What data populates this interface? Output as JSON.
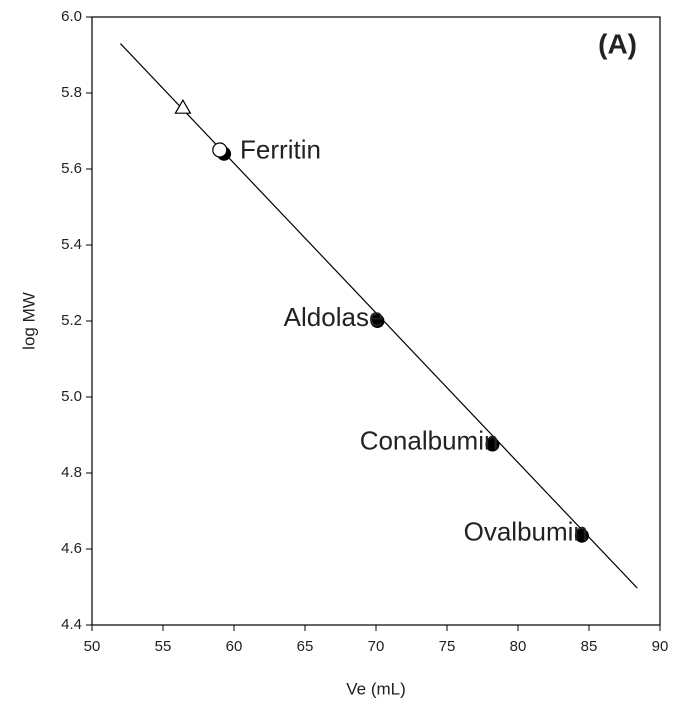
{
  "chart_data": {
    "type": "scatter",
    "annotation": "(A)",
    "x_label": "Ve (mL)",
    "y_label": "log MW",
    "xlim": [
      50,
      90
    ],
    "xticks": [
      50,
      55,
      60,
      65,
      70,
      75,
      80,
      85,
      90
    ],
    "ylim": [
      4.4,
      6.0
    ],
    "yticks": [
      {
        "value": 4.4,
        "label": "4.4"
      },
      {
        "value": 4.6,
        "label": "4.6"
      },
      {
        "value": 4.8,
        "label": "4.8"
      },
      {
        "value": 5.0,
        "label": "5.0"
      },
      {
        "value": 5.2,
        "label": "5.2"
      },
      {
        "value": 5.4,
        "label": "5.4"
      },
      {
        "value": 5.6,
        "label": "5.6"
      },
      {
        "value": 5.8,
        "label": "5.8"
      },
      {
        "value": 6.0,
        "label": "6.0"
      }
    ],
    "series": [
      {
        "marker": "filled-circle",
        "color": "#000000",
        "x": [
          59.3,
          70.1,
          78.2,
          84.5
        ],
        "values": [
          5.64,
          5.2,
          4.875,
          4.635
        ],
        "labels": [
          "Ferritin",
          "Aldolase",
          "Conalbumin",
          "Ovalbumin"
        ]
      },
      {
        "marker": "open-circle",
        "color": "#000000",
        "x": [
          59.0
        ],
        "values": [
          5.65
        ]
      },
      {
        "marker": "open-triangle",
        "color": "#000000",
        "x": [
          56.4
        ],
        "values": [
          5.76
        ]
      }
    ],
    "fit": {
      "color": "#000000",
      "x": [
        52,
        88.4
      ],
      "values": [
        5.93,
        4.497
      ]
    }
  }
}
